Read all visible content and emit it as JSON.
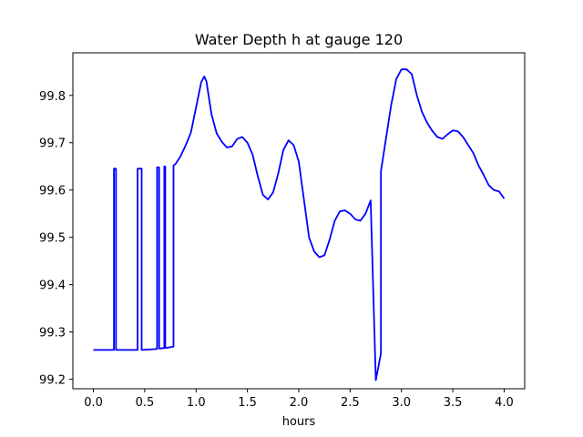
{
  "chart_data": {
    "type": "line",
    "title": "Water Depth h at gauge 120",
    "xlabel": "hours",
    "ylabel": "",
    "xlim": [
      -0.2,
      4.2
    ],
    "ylim": [
      99.18,
      99.89
    ],
    "xticks": [
      0.0,
      0.5,
      1.0,
      1.5,
      2.0,
      2.5,
      3.0,
      3.5,
      4.0
    ],
    "xtick_labels": [
      "0.0",
      "0.5",
      "1.0",
      "1.5",
      "2.0",
      "2.5",
      "3.0",
      "3.5",
      "4.0"
    ],
    "yticks": [
      99.2,
      99.3,
      99.4,
      99.5,
      99.6,
      99.7,
      99.8
    ],
    "ytick_labels": [
      "99.2",
      "99.3",
      "99.4",
      "99.5",
      "99.6",
      "99.7",
      "99.8"
    ],
    "grid": false,
    "series": [
      {
        "color": "#0000ff",
        "points": [
          [
            0.0,
            99.262
          ],
          [
            0.2,
            99.262
          ],
          [
            0.2,
            99.645
          ],
          [
            0.22,
            99.645
          ],
          [
            0.22,
            99.262
          ],
          [
            0.42,
            99.262
          ],
          [
            0.43,
            99.262
          ],
          [
            0.43,
            99.645
          ],
          [
            0.47,
            99.645
          ],
          [
            0.47,
            99.262
          ],
          [
            0.61,
            99.264
          ],
          [
            0.62,
            99.264
          ],
          [
            0.62,
            99.648
          ],
          [
            0.64,
            99.648
          ],
          [
            0.64,
            99.265
          ],
          [
            0.69,
            99.266
          ],
          [
            0.69,
            99.65
          ],
          [
            0.7,
            99.65
          ],
          [
            0.7,
            99.266
          ],
          [
            0.78,
            99.269
          ],
          [
            0.78,
            99.652
          ],
          [
            0.8,
            99.655
          ],
          [
            0.85,
            99.672
          ],
          [
            0.9,
            99.695
          ],
          [
            0.95,
            99.722
          ],
          [
            1.0,
            99.775
          ],
          [
            1.05,
            99.828
          ],
          [
            1.08,
            99.84
          ],
          [
            1.1,
            99.83
          ],
          [
            1.15,
            99.76
          ],
          [
            1.2,
            99.72
          ],
          [
            1.25,
            99.702
          ],
          [
            1.3,
            99.69
          ],
          [
            1.35,
            99.692
          ],
          [
            1.4,
            99.708
          ],
          [
            1.45,
            99.712
          ],
          [
            1.5,
            99.7
          ],
          [
            1.55,
            99.675
          ],
          [
            1.6,
            99.63
          ],
          [
            1.65,
            99.59
          ],
          [
            1.7,
            99.58
          ],
          [
            1.75,
            99.595
          ],
          [
            1.8,
            99.635
          ],
          [
            1.85,
            99.685
          ],
          [
            1.9,
            99.705
          ],
          [
            1.95,
            99.695
          ],
          [
            2.0,
            99.66
          ],
          [
            2.05,
            99.58
          ],
          [
            2.1,
            99.5
          ],
          [
            2.15,
            99.47
          ],
          [
            2.2,
            99.458
          ],
          [
            2.25,
            99.462
          ],
          [
            2.3,
            99.495
          ],
          [
            2.35,
            99.535
          ],
          [
            2.4,
            99.555
          ],
          [
            2.45,
            99.557
          ],
          [
            2.5,
            99.55
          ],
          [
            2.55,
            99.538
          ],
          [
            2.6,
            99.535
          ],
          [
            2.65,
            99.55
          ],
          [
            2.7,
            99.578
          ],
          [
            2.75,
            99.198
          ],
          [
            2.8,
            99.255
          ],
          [
            2.8,
            99.64
          ],
          [
            2.85,
            99.71
          ],
          [
            2.9,
            99.78
          ],
          [
            2.95,
            99.835
          ],
          [
            3.0,
            99.855
          ],
          [
            3.05,
            99.855
          ],
          [
            3.1,
            99.845
          ],
          [
            3.15,
            99.8
          ],
          [
            3.2,
            99.765
          ],
          [
            3.25,
            99.742
          ],
          [
            3.3,
            99.725
          ],
          [
            3.35,
            99.712
          ],
          [
            3.4,
            99.708
          ],
          [
            3.45,
            99.718
          ],
          [
            3.5,
            99.726
          ],
          [
            3.55,
            99.724
          ],
          [
            3.6,
            99.712
          ],
          [
            3.65,
            99.695
          ],
          [
            3.7,
            99.678
          ],
          [
            3.75,
            99.652
          ],
          [
            3.8,
            99.632
          ],
          [
            3.85,
            99.61
          ],
          [
            3.9,
            99.6
          ],
          [
            3.95,
            99.597
          ],
          [
            4.0,
            99.582
          ]
        ]
      }
    ]
  }
}
